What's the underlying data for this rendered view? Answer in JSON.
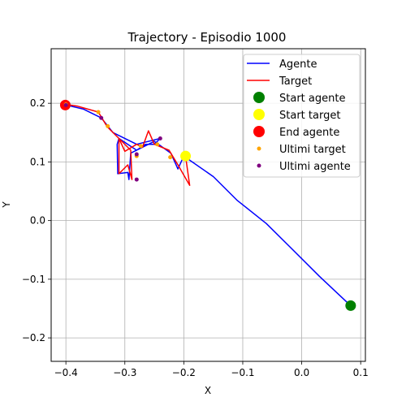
{
  "chart_data": {
    "type": "line",
    "title": "Trajectory - Episodio 1000",
    "xlabel": "X",
    "ylabel": "Y",
    "xlim": [
      -0.425,
      0.108
    ],
    "ylim": [
      -0.24,
      0.293
    ],
    "xticks": [
      -0.4,
      -0.3,
      -0.2,
      -0.1,
      0.0,
      0.1
    ],
    "xtick_labels": [
      "−0.4",
      "−0.3",
      "−0.2",
      "−0.1",
      "0.0",
      "0.1"
    ],
    "yticks": [
      -0.2,
      -0.1,
      0.0,
      0.1,
      0.2
    ],
    "ytick_labels": [
      "−0.2",
      "−0.1",
      "0.0",
      "0.1",
      "0.2"
    ],
    "grid": true,
    "legend_position": "top-right",
    "colors": {
      "agente": "#0000ff",
      "target": "#ff0000",
      "start_agente": "#008000",
      "start_target": "#ffff00",
      "end_agente": "#ff0000",
      "ultimi_target": "#ffa500",
      "ultimi_agente": "#800080"
    },
    "series": [
      {
        "name": "Agente",
        "kind": "line",
        "x": [
          0.083,
          0.03,
          -0.02,
          -0.06,
          -0.11,
          -0.15,
          -0.2,
          -0.21,
          -0.222,
          -0.25,
          -0.29,
          -0.293,
          -0.295,
          -0.312,
          -0.313,
          -0.31,
          -0.28,
          -0.265,
          -0.25,
          -0.24,
          -0.28,
          -0.32,
          -0.34,
          -0.37,
          -0.4
        ],
        "y": [
          -0.145,
          -0.095,
          -0.045,
          -0.005,
          0.035,
          0.075,
          0.11,
          0.088,
          0.115,
          0.135,
          0.115,
          0.07,
          0.082,
          0.08,
          0.13,
          0.14,
          0.12,
          0.13,
          0.13,
          0.14,
          0.13,
          0.15,
          0.175,
          0.19,
          0.197
        ]
      },
      {
        "name": "Target",
        "kind": "line",
        "x": [
          -0.197,
          -0.19,
          -0.21,
          -0.225,
          -0.25,
          -0.26,
          -0.27,
          -0.28,
          -0.3,
          -0.31,
          -0.31,
          -0.295,
          -0.288,
          -0.29,
          -0.31,
          -0.33,
          -0.345,
          -0.38,
          -0.4
        ],
        "y": [
          0.11,
          0.06,
          0.095,
          0.12,
          0.13,
          0.153,
          0.125,
          0.13,
          0.118,
          0.14,
          0.08,
          0.095,
          0.07,
          0.12,
          0.14,
          0.16,
          0.185,
          0.195,
          0.198
        ]
      },
      {
        "name": "Start agente",
        "kind": "scatter",
        "x": [
          0.083
        ],
        "y": [
          -0.145
        ]
      },
      {
        "name": "Start target",
        "kind": "scatter",
        "x": [
          -0.197
        ],
        "y": [
          0.11
        ]
      },
      {
        "name": "End agente",
        "kind": "scatter",
        "x": [
          -0.401
        ],
        "y": [
          0.197
        ]
      },
      {
        "name": "Ultimi target",
        "kind": "scatter",
        "x": [
          -0.4,
          -0.345,
          -0.329,
          -0.28,
          -0.273,
          -0.245,
          -0.223
        ],
        "y": [
          0.198,
          0.185,
          0.161,
          0.11,
          0.127,
          0.13,
          0.108
        ]
      },
      {
        "name": "Ultimi agente",
        "kind": "scatter",
        "x": [
          -0.4,
          -0.34,
          -0.28,
          -0.28,
          -0.24
        ],
        "y": [
          0.197,
          0.175,
          0.07,
          0.113,
          0.14
        ]
      }
    ]
  }
}
